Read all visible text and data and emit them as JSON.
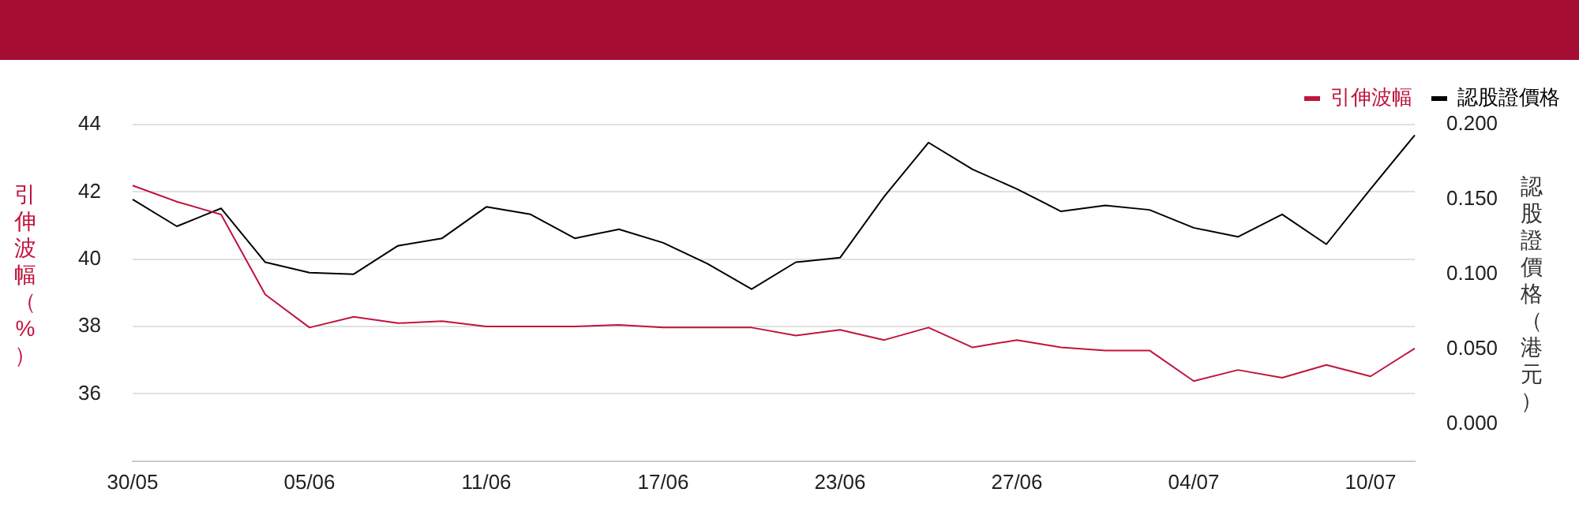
{
  "chart_data": {
    "type": "line",
    "categories": [
      "30/05",
      null,
      null,
      null,
      "05/06",
      null,
      null,
      null,
      "11/06",
      null,
      null,
      null,
      "17/06",
      null,
      null,
      null,
      "23/06",
      null,
      null,
      null,
      "27/06",
      null,
      null,
      null,
      "04/07",
      null,
      null,
      null,
      "10/07",
      null
    ],
    "series": [
      {
        "name": "引伸波幅",
        "color": "#c0143c",
        "values": [
          42.19,
          41.71,
          41.33,
          38.95,
          37.97,
          38.29,
          38.1,
          38.16,
          38.0,
          38.0,
          38.0,
          38.05,
          37.97,
          37.97,
          37.97,
          37.73,
          37.9,
          37.6,
          37.97,
          37.38,
          37.6,
          37.38,
          37.29,
          37.29,
          36.38,
          36.71,
          36.48,
          36.86,
          36.52,
          37.35
        ]
      },
      {
        "name": "認股證價格",
        "color": "#000000",
        "axis": "y2",
        "values": [
          0.15,
          0.132,
          0.144,
          0.108,
          0.101,
          0.1,
          0.119,
          0.124,
          0.145,
          0.14,
          0.124,
          0.13,
          0.121,
          0.107,
          0.09,
          0.108,
          0.111,
          0.152,
          0.188,
          0.17,
          0.157,
          0.142,
          0.146,
          0.143,
          0.131,
          0.125,
          0.14,
          0.12,
          0.157,
          0.193
        ]
      }
    ],
    "ylabel": "引伸波幅（%）",
    "y2label": "認股證價格（港元）",
    "ylim": [
      34,
      44
    ],
    "yticks": [
      36,
      38,
      40,
      42,
      44
    ],
    "y2lim": [
      -0.025,
      0.2
    ],
    "y2ticks": [
      {
        "value": 0,
        "label": "0.000"
      },
      {
        "value": 0.05,
        "label": "0.050"
      },
      {
        "value": 0.1,
        "label": "0.100"
      },
      {
        "value": 0.15,
        "label": "0.150"
      },
      {
        "value": 0.2,
        "label": "0.200"
      }
    ],
    "grid": "y",
    "legend": "top right",
    "marker": "none",
    "line_style": "solid"
  }
}
